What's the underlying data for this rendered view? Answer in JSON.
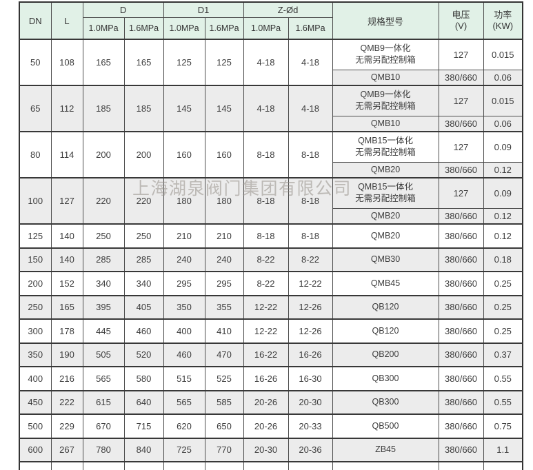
{
  "watermark": "上海湖泉阀门集团有限公司",
  "table": {
    "headers": {
      "dn": "DN",
      "l": "L",
      "d": "D",
      "d1": "D1",
      "z_od": "Z-Ød",
      "mpa_10": "1.0MPa",
      "mpa_16": "1.6MPa",
      "spec": "规格型号",
      "voltage": "电压\n(V)",
      "power": "功率\n(KW)"
    },
    "rows": [
      {
        "dn": "50",
        "l": "108",
        "d_10": "165",
        "d_16": "165",
        "d1_10": "125",
        "d1_16": "125",
        "z_10": "4-18",
        "z_16": "4-18",
        "shaded": false,
        "specs": [
          {
            "model": "QMB9一体化\n无需另配控制箱",
            "voltage": "127",
            "power": "0.015"
          },
          {
            "model": "QMB10",
            "voltage": "380/660",
            "power": "0.06"
          }
        ]
      },
      {
        "dn": "65",
        "l": "112",
        "d_10": "185",
        "d_16": "185",
        "d1_10": "145",
        "d1_16": "145",
        "z_10": "4-18",
        "z_16": "4-18",
        "shaded": true,
        "specs": [
          {
            "model": "QMB9一体化\n无需另配控制箱",
            "voltage": "127",
            "power": "0.015"
          },
          {
            "model": "QMB10",
            "voltage": "380/660",
            "power": "0.06"
          }
        ]
      },
      {
        "dn": "80",
        "l": "114",
        "d_10": "200",
        "d_16": "200",
        "d1_10": "160",
        "d1_16": "160",
        "z_10": "8-18",
        "z_16": "8-18",
        "shaded": false,
        "specs": [
          {
            "model": "QMB15一体化\n无需另配控制箱",
            "voltage": "127",
            "power": "0.09"
          },
          {
            "model": "QMB20",
            "voltage": "380/660",
            "power": "0.12"
          }
        ]
      },
      {
        "dn": "100",
        "l": "127",
        "d_10": "220",
        "d_16": "220",
        "d1_10": "180",
        "d1_16": "180",
        "z_10": "8-18",
        "z_16": "8-18",
        "shaded": true,
        "specs": [
          {
            "model": "QMB15一体化\n无需另配控制箱",
            "voltage": "127",
            "power": "0.09"
          },
          {
            "model": "QMB20",
            "voltage": "380/660",
            "power": "0.12"
          }
        ]
      },
      {
        "dn": "125",
        "l": "140",
        "d_10": "250",
        "d_16": "250",
        "d1_10": "210",
        "d1_16": "210",
        "z_10": "8-18",
        "z_16": "8-18",
        "shaded": false,
        "specs": [
          {
            "model": "QMB20",
            "voltage": "380/660",
            "power": "0.12"
          }
        ]
      },
      {
        "dn": "150",
        "l": "140",
        "d_10": "285",
        "d_16": "285",
        "d1_10": "240",
        "d1_16": "240",
        "z_10": "8-22",
        "z_16": "8-22",
        "shaded": true,
        "specs": [
          {
            "model": "QMB30",
            "voltage": "380/660",
            "power": "0.18"
          }
        ]
      },
      {
        "dn": "200",
        "l": "152",
        "d_10": "340",
        "d_16": "340",
        "d1_10": "295",
        "d1_16": "295",
        "z_10": "8-22",
        "z_16": "12-22",
        "shaded": false,
        "specs": [
          {
            "model": "QMB45",
            "voltage": "380/660",
            "power": "0.25"
          }
        ]
      },
      {
        "dn": "250",
        "l": "165",
        "d_10": "395",
        "d_16": "405",
        "d1_10": "350",
        "d1_16": "355",
        "z_10": "12-22",
        "z_16": "12-26",
        "shaded": true,
        "specs": [
          {
            "model": "QB120",
            "voltage": "380/660",
            "power": "0.25"
          }
        ]
      },
      {
        "dn": "300",
        "l": "178",
        "d_10": "445",
        "d_16": "460",
        "d1_10": "400",
        "d1_16": "410",
        "z_10": "12-22",
        "z_16": "12-26",
        "shaded": false,
        "specs": [
          {
            "model": "QB120",
            "voltage": "380/660",
            "power": "0.25"
          }
        ]
      },
      {
        "dn": "350",
        "l": "190",
        "d_10": "505",
        "d_16": "520",
        "d1_10": "460",
        "d1_16": "470",
        "z_10": "16-22",
        "z_16": "16-26",
        "shaded": true,
        "specs": [
          {
            "model": "QB200",
            "voltage": "380/660",
            "power": "0.37"
          }
        ]
      },
      {
        "dn": "400",
        "l": "216",
        "d_10": "565",
        "d_16": "580",
        "d1_10": "515",
        "d1_16": "525",
        "z_10": "16-26",
        "z_16": "16-30",
        "shaded": false,
        "specs": [
          {
            "model": "QB300",
            "voltage": "380/660",
            "power": "0.55"
          }
        ]
      },
      {
        "dn": "450",
        "l": "222",
        "d_10": "615",
        "d_16": "640",
        "d1_10": "565",
        "d1_16": "585",
        "z_10": "20-26",
        "z_16": "20-30",
        "shaded": true,
        "specs": [
          {
            "model": "QB300",
            "voltage": "380/660",
            "power": "0.55"
          }
        ]
      },
      {
        "dn": "500",
        "l": "229",
        "d_10": "670",
        "d_16": "715",
        "d1_10": "620",
        "d1_16": "650",
        "z_10": "20-26",
        "z_16": "20-33",
        "shaded": false,
        "specs": [
          {
            "model": "QB500",
            "voltage": "380/660",
            "power": "0.75"
          }
        ]
      },
      {
        "dn": "600",
        "l": "267",
        "d_10": "780",
        "d_16": "840",
        "d1_10": "725",
        "d1_16": "770",
        "z_10": "20-30",
        "z_16": "20-36",
        "shaded": true,
        "specs": [
          {
            "model": "ZB45",
            "voltage": "380/660",
            "power": "1.1"
          }
        ]
      }
    ]
  }
}
